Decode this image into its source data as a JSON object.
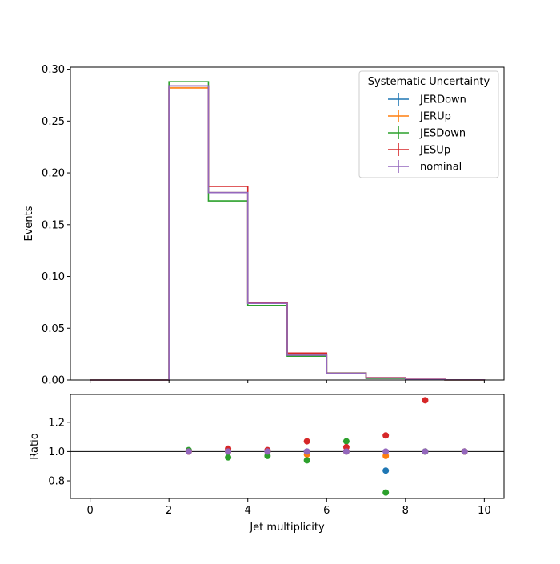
{
  "chart_data": {
    "type": "step",
    "xlabel": "Jet multiplicity",
    "x_ticks": [
      "0",
      "2",
      "4",
      "6",
      "8",
      "10"
    ],
    "xlim": [
      -0.5,
      10.5
    ],
    "bin_edges": [
      0,
      1,
      2,
      3,
      4,
      5,
      6,
      7,
      8,
      9,
      10
    ],
    "top_panel": {
      "ylabel": "Events",
      "ylim": [
        0,
        0.302
      ],
      "y_ticks": [
        "0.00",
        "0.05",
        "0.10",
        "0.15",
        "0.20",
        "0.25",
        "0.30"
      ],
      "legend": {
        "title": "Systematic Uncertainty",
        "placement": "upper-right"
      },
      "series": [
        {
          "name": "JERDown",
          "color": "#1f77b4",
          "values": [
            0,
            0,
            0.284,
            0.181,
            0.074,
            0.024,
            0.0065,
            0.0018,
            0.0005,
            0.0001
          ]
        },
        {
          "name": "JERUp",
          "color": "#ff7f0e",
          "values": [
            0,
            0,
            0.282,
            0.181,
            0.074,
            0.024,
            0.0065,
            0.002,
            0.0005,
            0.0001
          ]
        },
        {
          "name": "JESDown",
          "color": "#2ca02c",
          "values": [
            0,
            0,
            0.288,
            0.173,
            0.072,
            0.023,
            0.0068,
            0.0015,
            0.0005,
            0.0001
          ]
        },
        {
          "name": "JESUp",
          "color": "#d62728",
          "values": [
            0,
            0,
            0.284,
            0.187,
            0.075,
            0.026,
            0.0066,
            0.0023,
            0.0007,
            0.0001
          ]
        },
        {
          "name": "nominal",
          "color": "#9467bd",
          "values": [
            0,
            0,
            0.284,
            0.181,
            0.074,
            0.024,
            0.0065,
            0.002,
            0.0005,
            0.0001
          ]
        }
      ]
    },
    "ratio_panel": {
      "ylabel": "Ratio",
      "ylim": [
        0.68,
        1.39
      ],
      "y_ticks": [
        "0.8",
        "1.0",
        "1.2"
      ],
      "reference_line": 1.0,
      "x": [
        2.5,
        3.5,
        4.5,
        5.5,
        6.5,
        7.5,
        8.5,
        9.5
      ],
      "series": [
        {
          "name": "JERDown",
          "color": "#1f77b4",
          "values": [
            1.0,
            1.0,
            1.0,
            1.0,
            1.0,
            0.87,
            1.0,
            1.0
          ]
        },
        {
          "name": "JERUp",
          "color": "#ff7f0e",
          "values": [
            1.0,
            1.0,
            1.0,
            0.98,
            1.0,
            0.97,
            1.0,
            1.0
          ]
        },
        {
          "name": "JESDown",
          "color": "#2ca02c",
          "values": [
            1.01,
            0.96,
            0.97,
            0.94,
            1.07,
            0.72,
            1.0,
            1.0
          ]
        },
        {
          "name": "JESUp",
          "color": "#d62728",
          "values": [
            1.0,
            1.02,
            1.01,
            1.07,
            1.03,
            1.11,
            1.35,
            1.0
          ]
        },
        {
          "name": "nominal",
          "color": "#9467bd",
          "values": [
            1.0,
            1.0,
            1.0,
            1.0,
            1.0,
            1.0,
            1.0,
            1.0
          ]
        }
      ]
    }
  }
}
